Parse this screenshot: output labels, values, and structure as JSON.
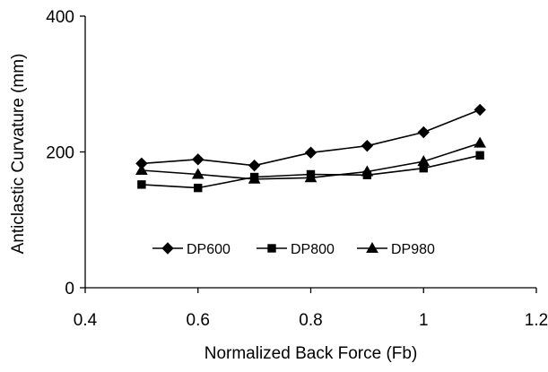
{
  "chart_data": {
    "type": "line",
    "title": "",
    "xlabel": "Normalized Back Force (Fb)",
    "ylabel": "Anticlastic Curvature (mm)",
    "xlim": [
      0.4,
      1.2
    ],
    "ylim": [
      0,
      400
    ],
    "xticks": [
      0.4,
      0.6,
      0.8,
      1.0,
      1.2
    ],
    "xtick_labels": [
      "0.4",
      "0.6",
      "0.8",
      "1",
      "1.2"
    ],
    "yticks": [
      0,
      200,
      400
    ],
    "ytick_labels": [
      "0",
      "200",
      "400"
    ],
    "grid": false,
    "legend_position": "inside-bottom",
    "series": [
      {
        "name": "DP600",
        "marker": "diamond",
        "x": [
          0.5,
          0.6,
          0.7,
          0.8,
          0.9,
          1.0,
          1.1
        ],
        "values": [
          183,
          189,
          180,
          199,
          209,
          229,
          262
        ]
      },
      {
        "name": "DP800",
        "marker": "square",
        "x": [
          0.5,
          0.6,
          0.7,
          0.8,
          0.9,
          1.0,
          1.1
        ],
        "values": [
          152,
          147,
          163,
          167,
          166,
          176,
          195
        ]
      },
      {
        "name": "DP980",
        "marker": "triangle",
        "x": [
          0.5,
          0.6,
          0.7,
          0.8,
          0.9,
          1.0,
          1.1
        ],
        "values": [
          173,
          167,
          160,
          162,
          171,
          186,
          213
        ]
      }
    ]
  }
}
